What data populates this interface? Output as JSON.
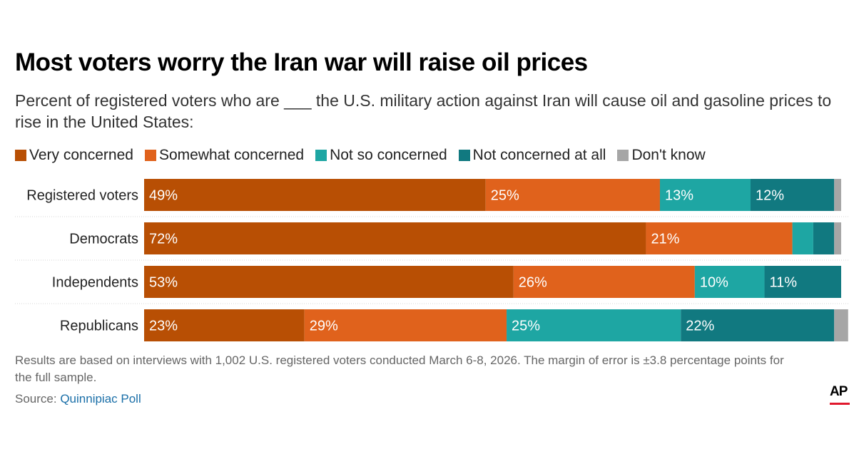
{
  "title": "Most voters worry the Iran war will raise oil prices",
  "subtitle": "Percent of registered voters who are ___ the U.S. military action against Iran will cause oil and gasoline prices to rise in the United States:",
  "footnote": "Results are based on interviews with 1,002 U.S. registered voters conducted March 6-8, 2026. The margin of error is ±3.8 percentage points for the full sample.",
  "source": {
    "label": "Source:",
    "link_text": "Quinnipiac Poll"
  },
  "logo": {
    "text": "AP",
    "accent": "#e0182d"
  },
  "chart_data": {
    "type": "bar",
    "orientation": "horizontal",
    "stacked": true,
    "title": "Most voters worry the Iran war will raise oil prices",
    "xlabel": "",
    "ylabel": "",
    "xlim": [
      0,
      100
    ],
    "grid": false,
    "legend_position": "top-left",
    "categories": [
      "Registered voters",
      "Democrats",
      "Independents",
      "Republicans"
    ],
    "series": [
      {
        "name": "Very concerned",
        "color": "#b84f04",
        "values": [
          49,
          72,
          53,
          23
        ],
        "labels": [
          "49%",
          "72%",
          "53%",
          "23%"
        ]
      },
      {
        "name": "Somewhat concerned",
        "color": "#e0621c",
        "values": [
          25,
          21,
          26,
          29
        ],
        "labels": [
          "25%",
          "21%",
          "26%",
          "29%"
        ]
      },
      {
        "name": "Not so concerned",
        "color": "#1ea6a3",
        "values": [
          13,
          3,
          10,
          25
        ],
        "labels": [
          "13%",
          "",
          "10%",
          "25%"
        ]
      },
      {
        "name": "Not concerned at all",
        "color": "#117980",
        "values": [
          12,
          3,
          11,
          22
        ],
        "labels": [
          "12%",
          "",
          "11%",
          "22%"
        ]
      },
      {
        "name": "Don't know",
        "color": "#a6a6a6",
        "values": [
          1,
          1,
          0,
          2
        ],
        "labels": [
          "",
          "",
          "",
          ""
        ]
      }
    ]
  }
}
